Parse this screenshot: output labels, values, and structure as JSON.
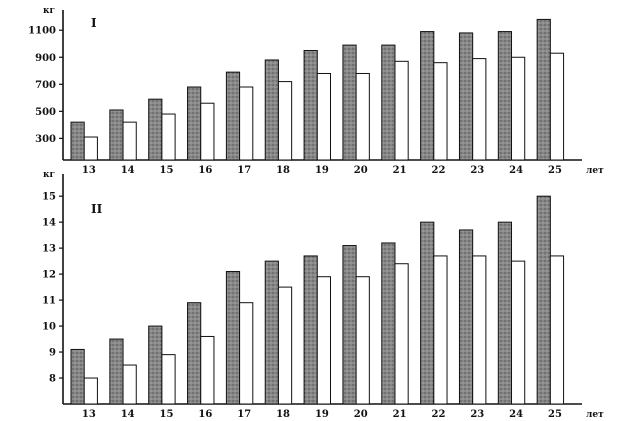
{
  "chart_data": [
    {
      "type": "bar",
      "panel_label": "I",
      "ylabel": "кг",
      "xlabel": "лет",
      "categories": [
        "13",
        "14",
        "15",
        "16",
        "17",
        "18",
        "19",
        "20",
        "21",
        "22",
        "23",
        "24",
        "25"
      ],
      "yticks": [
        "300",
        "500",
        "700",
        "900",
        "1100"
      ],
      "ylim": [
        140,
        1220
      ],
      "series": [
        {
          "values": [
            420,
            510,
            590,
            680,
            790,
            880,
            950,
            990,
            990,
            1090,
            1080,
            1090,
            1180
          ]
        },
        {
          "values": [
            310,
            420,
            480,
            560,
            680,
            720,
            780,
            780,
            870,
            860,
            890,
            900,
            930
          ]
        }
      ],
      "colors": {
        "dark": "#7a7a7a",
        "light": "#ffffff",
        "outline": "#111111"
      }
    },
    {
      "type": "bar",
      "panel_label": "II",
      "ylabel": "кг",
      "xlabel": "лет",
      "categories": [
        "13",
        "14",
        "15",
        "16",
        "17",
        "18",
        "19",
        "20",
        "21",
        "22",
        "23",
        "24",
        "25"
      ],
      "yticks": [
        "8",
        "9",
        "10",
        "11",
        "12",
        "13",
        "14",
        "15"
      ],
      "ylim": [
        7,
        15.7
      ],
      "series": [
        {
          "values": [
            9.1,
            9.5,
            10.0,
            10.9,
            12.1,
            12.5,
            12.7,
            13.1,
            13.2,
            14.0,
            13.7,
            14.0,
            15.0
          ]
        },
        {
          "values": [
            8.0,
            8.5,
            8.9,
            9.6,
            10.9,
            11.5,
            11.9,
            11.9,
            12.4,
            12.7,
            12.7,
            12.5,
            12.7
          ]
        }
      ],
      "colors": {
        "dark": "#7a7a7a",
        "light": "#ffffff",
        "outline": "#111111"
      }
    }
  ]
}
